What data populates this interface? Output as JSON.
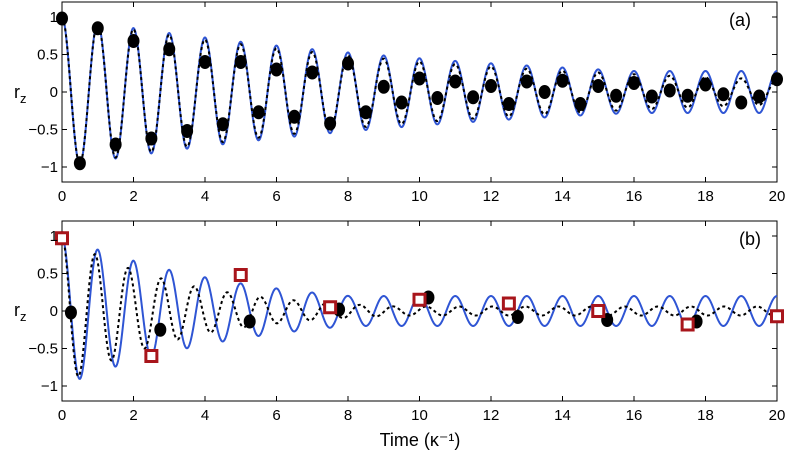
{
  "chart_data": [
    {
      "type": "line",
      "panel_label": "(a)",
      "ylabel": "r",
      "ylabel_sub": "z",
      "xlim": [
        0,
        20
      ],
      "ylim": [
        -1.2,
        1.2
      ],
      "xticks": [
        0,
        2,
        4,
        6,
        8,
        10,
        12,
        14,
        16,
        18,
        20
      ],
      "yticks": [
        1,
        0.5,
        0,
        -0.5,
        -1
      ],
      "ytick_labels": [
        "1",
        "0.5",
        "0",
        "−0.5",
        "−1"
      ],
      "series": [
        {
          "name": "blue solid",
          "style": "solid",
          "color": "#2f55d4",
          "model": {
            "freq": 1.0,
            "decay": 0.08,
            "floor": 0.28,
            "phase": 0.0
          }
        },
        {
          "name": "black dotted",
          "style": "dotted",
          "color": "#000000",
          "model": {
            "freq": 1.0,
            "decay": 0.09,
            "floor": 0.06,
            "phase": 0.0
          }
        },
        {
          "name": "black dots",
          "style": "marker",
          "color": "#000000",
          "x": [
            0,
            0.5,
            1,
            1.5,
            2,
            2.5,
            3,
            3.5,
            4,
            4.5,
            5,
            5.5,
            6,
            6.5,
            7,
            7.5,
            8,
            8.5,
            9,
            9.5,
            10,
            10.5,
            11,
            11.5,
            12,
            12.5,
            13,
            13.5,
            14,
            14.5,
            15,
            15.5,
            16,
            16.5,
            17,
            17.5,
            18,
            18.5,
            19,
            19.5,
            20
          ],
          "y": [
            0.98,
            -0.95,
            0.85,
            -0.7,
            0.68,
            -0.62,
            0.57,
            -0.52,
            0.4,
            -0.43,
            0.4,
            -0.27,
            0.3,
            -0.33,
            0.26,
            -0.42,
            0.38,
            -0.27,
            0.07,
            -0.14,
            0.18,
            -0.08,
            0.14,
            -0.07,
            0.08,
            -0.16,
            0.14,
            0.0,
            0.15,
            -0.16,
            0.08,
            -0.05,
            0.12,
            -0.06,
            0.02,
            -0.05,
            0.1,
            -0.03,
            -0.14,
            -0.06,
            0.17
          ]
        }
      ]
    },
    {
      "type": "line",
      "panel_label": "(b)",
      "xlabel": "Time (κ⁻¹)",
      "ylabel": "r",
      "ylabel_sub": "z",
      "xlim": [
        0,
        20
      ],
      "ylim": [
        -1.2,
        1.2
      ],
      "xticks": [
        0,
        2,
        4,
        6,
        8,
        10,
        12,
        14,
        16,
        18,
        20
      ],
      "yticks": [
        1,
        0.5,
        0,
        -0.5,
        -1
      ],
      "ytick_labels": [
        "1",
        "0.5",
        "0",
        "−0.5",
        "−1"
      ],
      "series": [
        {
          "name": "blue solid",
          "style": "solid",
          "color": "#2f55d4",
          "model": {
            "freq": 1.0,
            "decay": 0.2,
            "floor": 0.2,
            "phase": 0.0
          }
        },
        {
          "name": "black dotted",
          "style": "dotted",
          "color": "#000000",
          "model": {
            "freq": 1.08,
            "decay": 0.3,
            "floor": 0.06,
            "phase": 0.0
          }
        },
        {
          "name": "black dots",
          "style": "marker",
          "color": "#000000",
          "x": [
            0,
            0.25,
            2.75,
            5.25,
            7.75,
            10.25,
            12.75,
            15.25,
            17.75
          ],
          "y": [
            0.97,
            -0.02,
            -0.25,
            -0.14,
            0.02,
            0.18,
            -0.08,
            -0.12,
            -0.14
          ]
        },
        {
          "name": "red squares",
          "style": "square",
          "color": "#a8151b",
          "x": [
            0,
            2.5,
            5,
            7.5,
            10,
            12.5,
            15,
            17.5,
            20
          ],
          "y": [
            0.97,
            -0.6,
            0.48,
            0.05,
            0.15,
            0.1,
            0.0,
            -0.18,
            -0.07
          ]
        }
      ]
    }
  ]
}
